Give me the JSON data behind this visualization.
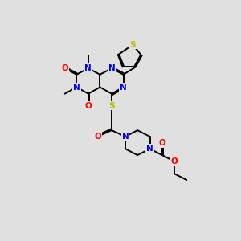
{
  "bg_color": "#e0e0e0",
  "atom_colors": {
    "N": "#0000ee",
    "O": "#ff0000",
    "S": "#bbbb00",
    "C": "#000000"
  },
  "bond_color": "#000000",
  "bond_width": 1.4,
  "font_size": 7.5
}
